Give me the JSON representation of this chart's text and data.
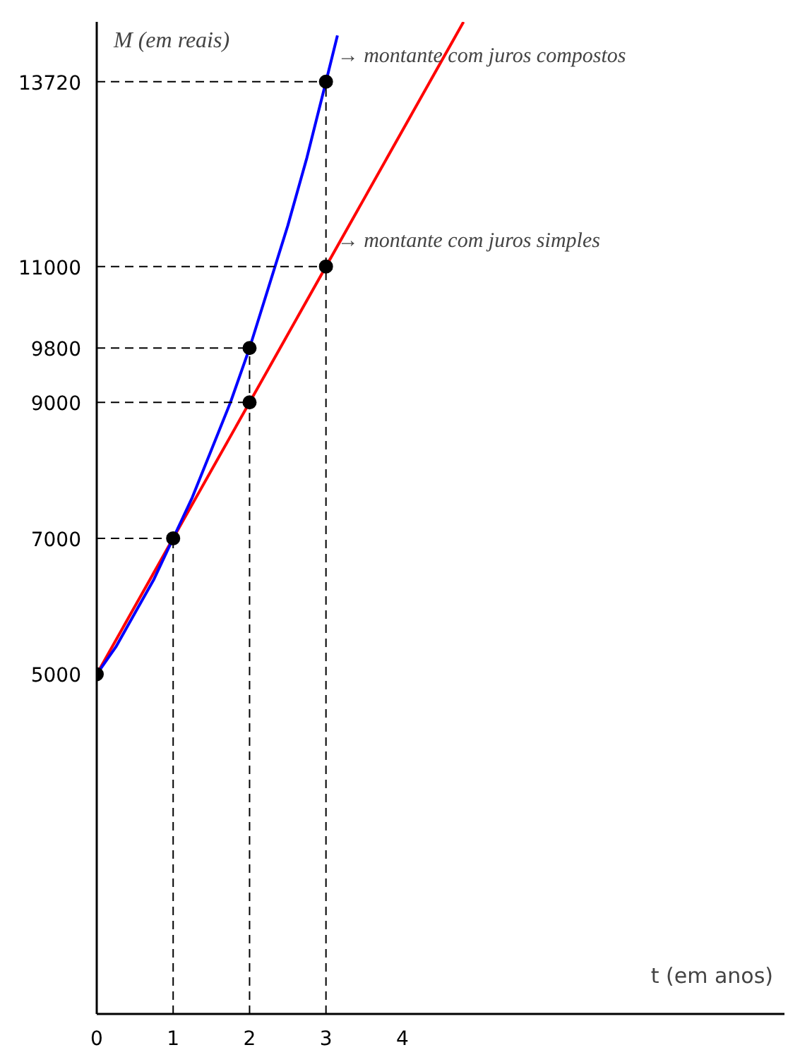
{
  "chart_data": {
    "type": "line",
    "xlabel": "t (em anos)",
    "ylabel": "M (em reais)",
    "xlim": [
      0,
      9
    ],
    "ylim": [
      0,
      14600
    ],
    "xticks": [
      0,
      1,
      2,
      3,
      4
    ],
    "yticks": [
      5000,
      7000,
      9000,
      9800,
      11000,
      13720
    ],
    "grid": false,
    "series": [
      {
        "color": "#ff0000",
        "x": [
          0,
          4.8
        ],
        "values": [
          5000,
          14600
        ]
      },
      {
        "color": "#0000ff",
        "x": [
          0,
          0.25,
          0.5,
          0.75,
          1,
          1.25,
          1.5,
          1.75,
          2,
          2.25,
          2.5,
          2.75,
          3,
          3.15
        ],
        "values": [
          5000,
          5400,
          5900,
          6400,
          7000,
          7600,
          8300,
          9000,
          9800,
          10700,
          11600,
          12600,
          13720,
          14400
        ]
      },
      {
        "color": "#000000",
        "line_style": "dashed",
        "x": [
          0,
          3
        ],
        "values": [
          13720,
          13720
        ]
      },
      {
        "color": "#000000",
        "line_style": "dashed",
        "x": [
          0,
          3
        ],
        "values": [
          11000,
          11000
        ]
      },
      {
        "color": "#000000",
        "line_style": "dashed",
        "x": [
          0,
          2
        ],
        "values": [
          9800,
          9800
        ]
      },
      {
        "color": "#000000",
        "line_style": "dashed",
        "x": [
          0,
          2
        ],
        "values": [
          9000,
          9000
        ]
      },
      {
        "color": "#000000",
        "line_style": "dashed",
        "x": [
          0,
          1
        ],
        "values": [
          7000,
          7000
        ]
      },
      {
        "color": "#000000",
        "line_style": "dashed",
        "x": [
          1,
          1
        ],
        "values": [
          0,
          7000
        ]
      },
      {
        "color": "#000000",
        "line_style": "dashed",
        "x": [
          2,
          2
        ],
        "values": [
          0,
          9800
        ]
      },
      {
        "color": "#000000",
        "line_style": "dashed",
        "x": [
          3,
          3
        ],
        "values": [
          0,
          13720
        ]
      },
      {
        "type": "scatter",
        "marker": "circle",
        "color": "#000000",
        "x": [
          0,
          1,
          2,
          2,
          3,
          3
        ],
        "values": [
          5000,
          7000,
          9000,
          9800,
          11000,
          13720
        ]
      }
    ],
    "annotations": [
      {
        "text": "→ montante com juros compostos",
        "x": 3,
        "y": 13720
      },
      {
        "text": "→ montante com juros simples",
        "x": 3,
        "y": 11000
      }
    ]
  }
}
